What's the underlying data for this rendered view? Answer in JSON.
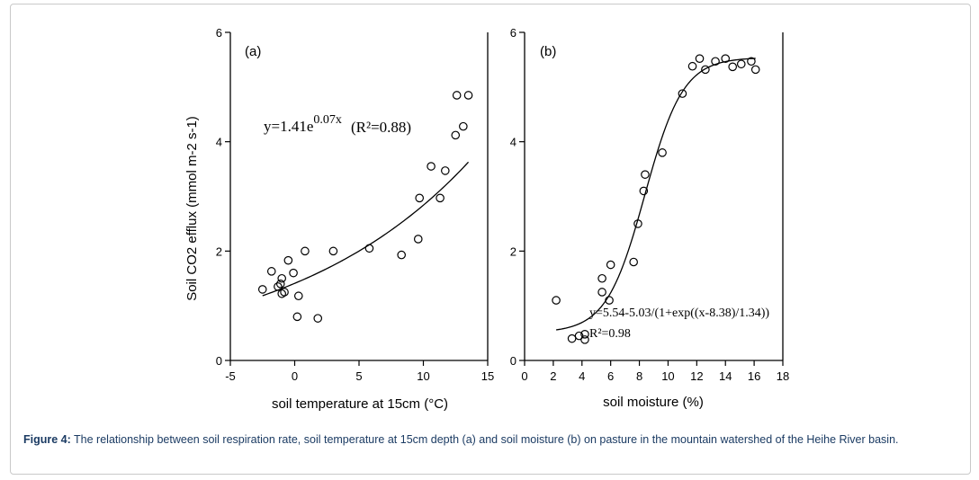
{
  "chart_data": [
    {
      "type": "scatter",
      "panel_label": "(a)",
      "xlabel": "soil temperature at 15cm (°C)",
      "ylabel": "Soil CO2 efflux (mmol m-2 s-1)",
      "xlim": [
        -5,
        15
      ],
      "ylim": [
        0,
        6
      ],
      "xticks": [
        -5,
        0,
        5,
        10,
        15
      ],
      "yticks": [
        0,
        2,
        4,
        6
      ],
      "points": [
        [
          -2.5,
          1.3
        ],
        [
          -1.8,
          1.63
        ],
        [
          -1.3,
          1.35
        ],
        [
          -1.1,
          1.4
        ],
        [
          -1.0,
          1.5
        ],
        [
          -1.0,
          1.22
        ],
        [
          -0.8,
          1.25
        ],
        [
          -0.5,
          1.83
        ],
        [
          -0.1,
          1.6
        ],
        [
          0.2,
          0.8
        ],
        [
          0.3,
          1.18
        ],
        [
          0.8,
          2.0
        ],
        [
          1.8,
          0.77
        ],
        [
          3.0,
          2.0
        ],
        [
          5.8,
          2.05
        ],
        [
          8.3,
          1.93
        ],
        [
          9.6,
          2.22
        ],
        [
          9.7,
          2.97
        ],
        [
          10.6,
          3.55
        ],
        [
          11.3,
          2.97
        ],
        [
          11.7,
          3.47
        ],
        [
          12.5,
          4.12
        ],
        [
          12.6,
          4.85
        ],
        [
          13.1,
          4.28
        ],
        [
          13.5,
          4.85
        ]
      ],
      "fit": {
        "type": "exponential",
        "a": 1.41,
        "b": 0.07,
        "x_range": [
          -2.5,
          13.5
        ]
      },
      "annotation_eq": "y=1.41e",
      "annotation_exp": "0.07x",
      "annotation_r2": "(R²=0.88)"
    },
    {
      "type": "scatter",
      "panel_label": "(b)",
      "xlabel": "soil moisture (%)",
      "ylabel": "",
      "xlim": [
        0,
        18
      ],
      "ylim": [
        0,
        6
      ],
      "xticks": [
        0,
        2,
        4,
        6,
        8,
        10,
        12,
        14,
        16,
        18
      ],
      "yticks": [
        0,
        2,
        4,
        6
      ],
      "points": [
        [
          2.2,
          1.1
        ],
        [
          3.3,
          0.4
        ],
        [
          3.8,
          0.45
        ],
        [
          4.2,
          0.48
        ],
        [
          4.2,
          0.38
        ],
        [
          5.4,
          1.5
        ],
        [
          5.4,
          1.25
        ],
        [
          5.9,
          1.1
        ],
        [
          6.0,
          1.75
        ],
        [
          7.6,
          1.8
        ],
        [
          7.9,
          2.5
        ],
        [
          8.3,
          3.1
        ],
        [
          8.4,
          3.4
        ],
        [
          9.6,
          3.8
        ],
        [
          11.0,
          4.88
        ],
        [
          11.7,
          5.38
        ],
        [
          12.2,
          5.52
        ],
        [
          12.6,
          5.32
        ],
        [
          13.3,
          5.47
        ],
        [
          14.0,
          5.52
        ],
        [
          14.5,
          5.37
        ],
        [
          15.1,
          5.42
        ],
        [
          15.8,
          5.47
        ],
        [
          16.1,
          5.32
        ]
      ],
      "fit": {
        "type": "sigmoid",
        "a": 5.54,
        "b": 5.03,
        "x0": 8.38,
        "k": 1.34,
        "x_range": [
          2.2,
          16.1
        ]
      },
      "annotation_eq": "y=5.54-5.03/(1+exp((x-8.38)/1.34))",
      "annotation_r2": "R²=0.98"
    }
  ],
  "caption": {
    "label": "Figure 4:",
    "text": "The relationship between soil respiration rate, soil temperature at 15cm depth (a) and soil moisture (b) on pasture in the mountain watershed of the Heihe River basin."
  }
}
